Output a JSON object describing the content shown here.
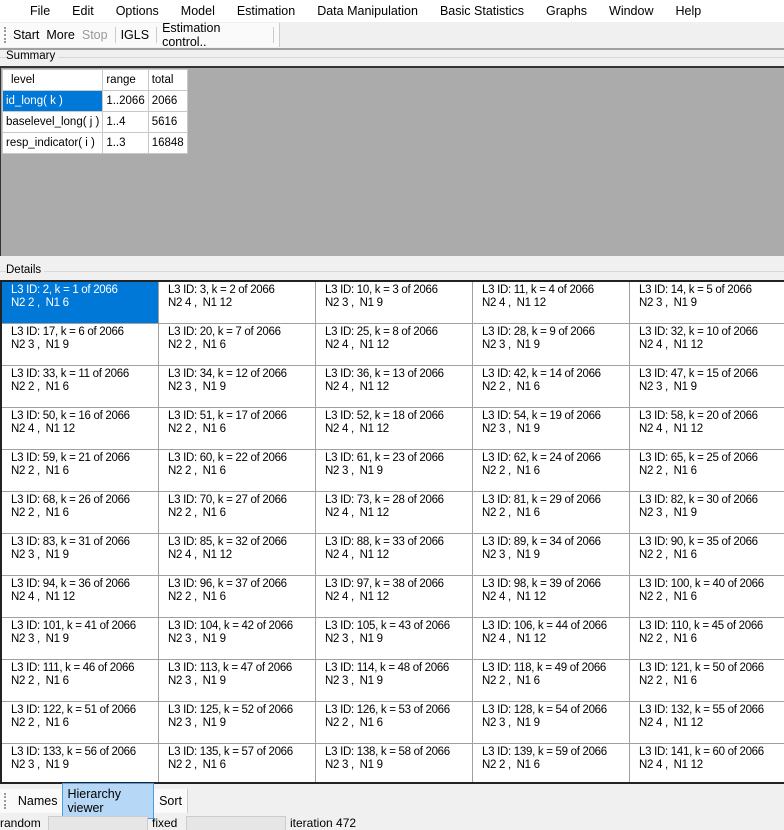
{
  "menu": [
    "File",
    "Edit",
    "Options",
    "Model",
    "Estimation",
    "Data Manipulation",
    "Basic Statistics",
    "Graphs",
    "Window",
    "Help"
  ],
  "toolbar": {
    "start": "Start",
    "more": "More",
    "stop": "Stop",
    "igls": "IGLS",
    "estimation_control": "Estimation control.."
  },
  "summary": {
    "label": "Summary",
    "headers": [
      "level",
      "range",
      "total"
    ],
    "rows": [
      [
        "id_long( k )",
        "1..2066",
        "2066"
      ],
      [
        "baselevel_long( j )",
        "1..4",
        "5616"
      ],
      [
        "resp_indicator( i )",
        "1..3",
        "16848"
      ]
    ],
    "selected_row": 0
  },
  "details": {
    "label": "Details",
    "selected_index": 0,
    "cells": [
      [
        "L3 ID: 2, k = 1 of 2066",
        "N2 2 ,  N1 6"
      ],
      [
        "L3 ID: 3, k = 2 of 2066",
        "N2 4 ,  N1 12"
      ],
      [
        "L3 ID: 10, k = 3 of 2066",
        "N2 3 ,  N1 9"
      ],
      [
        "L3 ID: 11, k = 4 of 2066",
        "N2 4 ,  N1 12"
      ],
      [
        "L3 ID: 14, k = 5 of 2066",
        "N2 3 ,  N1 9"
      ],
      [
        "L3 ID: 17, k = 6 of 2066",
        "N2 3 ,  N1 9"
      ],
      [
        "L3 ID: 20, k = 7 of 2066",
        "N2 2 ,  N1 6"
      ],
      [
        "L3 ID: 25, k = 8 of 2066",
        "N2 4 ,  N1 12"
      ],
      [
        "L3 ID: 28, k = 9 of 2066",
        "N2 3 ,  N1 9"
      ],
      [
        "L3 ID: 32, k = 10 of 2066",
        "N2 4 ,  N1 12"
      ],
      [
        "L3 ID: 33, k = 11 of 2066",
        "N2 2 ,  N1 6"
      ],
      [
        "L3 ID: 34, k = 12 of 2066",
        "N2 3 ,  N1 9"
      ],
      [
        "L3 ID: 36, k = 13 of 2066",
        "N2 4 ,  N1 12"
      ],
      [
        "L3 ID: 42, k = 14 of 2066",
        "N2 2 ,  N1 6"
      ],
      [
        "L3 ID: 47, k = 15 of 2066",
        "N2 3 ,  N1 9"
      ],
      [
        "L3 ID: 50, k = 16 of 2066",
        "N2 4 ,  N1 12"
      ],
      [
        "L3 ID: 51, k = 17 of 2066",
        "N2 2 ,  N1 6"
      ],
      [
        "L3 ID: 52, k = 18 of 2066",
        "N2 4 ,  N1 12"
      ],
      [
        "L3 ID: 54, k = 19 of 2066",
        "N2 3 ,  N1 9"
      ],
      [
        "L3 ID: 58, k = 20 of 2066",
        "N2 4 ,  N1 12"
      ],
      [
        "L3 ID: 59, k = 21 of 2066",
        "N2 2 ,  N1 6"
      ],
      [
        "L3 ID: 60, k = 22 of 2066",
        "N2 2 ,  N1 6"
      ],
      [
        "L3 ID: 61, k = 23 of 2066",
        "N2 3 ,  N1 9"
      ],
      [
        "L3 ID: 62, k = 24 of 2066",
        "N2 2 ,  N1 6"
      ],
      [
        "L3 ID: 65, k = 25 of 2066",
        "N2 2 ,  N1 6"
      ],
      [
        "L3 ID: 68, k = 26 of 2066",
        "N2 2 ,  N1 6"
      ],
      [
        "L3 ID: 70, k = 27 of 2066",
        "N2 2 ,  N1 6"
      ],
      [
        "L3 ID: 73, k = 28 of 2066",
        "N2 4 ,  N1 12"
      ],
      [
        "L3 ID: 81, k = 29 of 2066",
        "N2 2 ,  N1 6"
      ],
      [
        "L3 ID: 82, k = 30 of 2066",
        "N2 3 ,  N1 9"
      ],
      [
        "L3 ID: 83, k = 31 of 2066",
        "N2 3 ,  N1 9"
      ],
      [
        "L3 ID: 85, k = 32 of 2066",
        "N2 4 ,  N1 12"
      ],
      [
        "L3 ID: 88, k = 33 of 2066",
        "N2 4 ,  N1 12"
      ],
      [
        "L3 ID: 89, k = 34 of 2066",
        "N2 3 ,  N1 9"
      ],
      [
        "L3 ID: 90, k = 35 of 2066",
        "N2 2 ,  N1 6"
      ],
      [
        "L3 ID: 94, k = 36 of 2066",
        "N2 4 ,  N1 12"
      ],
      [
        "L3 ID: 96, k = 37 of 2066",
        "N2 2 ,  N1 6"
      ],
      [
        "L3 ID: 97, k = 38 of 2066",
        "N2 4 ,  N1 12"
      ],
      [
        "L3 ID: 98, k = 39 of 2066",
        "N2 4 ,  N1 12"
      ],
      [
        "L3 ID: 100, k = 40 of 2066",
        "N2 2 ,  N1 6"
      ],
      [
        "L3 ID: 101, k = 41 of 2066",
        "N2 3 ,  N1 9"
      ],
      [
        "L3 ID: 104, k = 42 of 2066",
        "N2 3 ,  N1 9"
      ],
      [
        "L3 ID: 105, k = 43 of 2066",
        "N2 3 ,  N1 9"
      ],
      [
        "L3 ID: 106, k = 44 of 2066",
        "N2 4 ,  N1 12"
      ],
      [
        "L3 ID: 110, k = 45 of 2066",
        "N2 2 ,  N1 6"
      ],
      [
        "L3 ID: 111, k = 46 of 2066",
        "N2 2 ,  N1 6"
      ],
      [
        "L3 ID: 113, k = 47 of 2066",
        "N2 3 ,  N1 9"
      ],
      [
        "L3 ID: 114, k = 48 of 2066",
        "N2 3 ,  N1 9"
      ],
      [
        "L3 ID: 118, k = 49 of 2066",
        "N2 2 ,  N1 6"
      ],
      [
        "L3 ID: 121, k = 50 of 2066",
        "N2 2 ,  N1 6"
      ],
      [
        "L3 ID: 122, k = 51 of 2066",
        "N2 2 ,  N1 6"
      ],
      [
        "L3 ID: 125, k = 52 of 2066",
        "N2 3 ,  N1 9"
      ],
      [
        "L3 ID: 126, k = 53 of 2066",
        "N2 2 ,  N1 6"
      ],
      [
        "L3 ID: 128, k = 54 of 2066",
        "N2 3 ,  N1 9"
      ],
      [
        "L3 ID: 132, k = 55 of 2066",
        "N2 4 ,  N1 12"
      ],
      [
        "L3 ID: 133, k = 56 of 2066",
        "N2 3 ,  N1 9"
      ],
      [
        "L3 ID: 135, k = 57 of 2066",
        "N2 2 ,  N1 6"
      ],
      [
        "L3 ID: 138, k = 58 of 2066",
        "N2 3 ,  N1 9"
      ],
      [
        "L3 ID: 139, k = 59 of 2066",
        "N2 2 ,  N1 6"
      ],
      [
        "L3 ID: 141, k = 60 of 2066",
        "N2 4 ,  N1 12"
      ]
    ]
  },
  "bottom_tabs": {
    "items": [
      "Names",
      "Hierarchy viewer",
      "Sort"
    ],
    "active": 1
  },
  "status": {
    "random_label": "random",
    "fixed_label": "fixed",
    "iteration": "iteration 472"
  },
  "colors": {
    "selection": "#0078d7",
    "active_tab": "#b6d7f5",
    "summary_bg": "#ababab"
  }
}
